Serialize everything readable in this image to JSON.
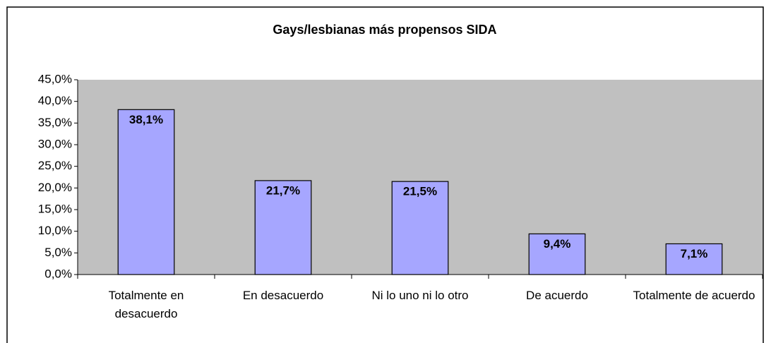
{
  "chart_data": {
    "type": "bar",
    "title": "Gays/lesbianas más propensos SIDA",
    "categories": [
      "Totalmente en desacuerdo",
      "En desacuerdo",
      "Ni lo uno ni lo otro",
      "De acuerdo",
      "Totalmente de acuerdo"
    ],
    "values": [
      38.1,
      21.7,
      21.5,
      9.4,
      7.1
    ],
    "value_labels": [
      "38,1%",
      "21,7%",
      "21,5%",
      "9,4%",
      "7,1%"
    ],
    "color": "#a6a6ff",
    "ylim": [
      0,
      45
    ],
    "yticks": [
      {
        "value": 0,
        "label": "0,0%"
      },
      {
        "value": 5,
        "label": "5,0%"
      },
      {
        "value": 10,
        "label": "10,0%"
      },
      {
        "value": 15,
        "label": "15,0%"
      },
      {
        "value": 20,
        "label": "20,0%"
      },
      {
        "value": 25,
        "label": "25,0%"
      },
      {
        "value": 30,
        "label": "30,0%"
      },
      {
        "value": 35,
        "label": "35,0%"
      },
      {
        "value": 40,
        "label": "40,0%"
      },
      {
        "value": 45,
        "label": "45,0%"
      }
    ],
    "grid": false
  }
}
